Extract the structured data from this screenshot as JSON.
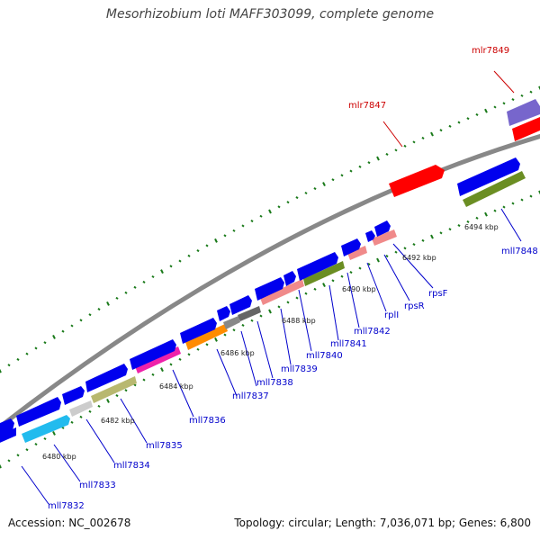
{
  "title": "Mesorhizobium loti MAFF303099, complete genome",
  "footer": {
    "accession": "Accession: NC_002678",
    "summary": "Topology: circular; Length: 7,036,071 bp; Genes: 6,800"
  },
  "colors": {
    "backbone": "#888888",
    "tick": "#1a7a1a",
    "label_forward": "#cc0000",
    "label_reverse": "#0000cc",
    "gene_blue": "#0000ee"
  },
  "scale_labels": [
    "6480 kbp",
    "6482 kbp",
    "6484 kbp",
    "6486 kbp",
    "6488 kbp",
    "6490 kbp",
    "6492 kbp",
    "6494 kbp"
  ],
  "gene_labels": [
    {
      "id": "mlr7849",
      "label": "mlr7849",
      "strand": "forward"
    },
    {
      "id": "mlr7847",
      "label": "mlr7847",
      "strand": "forward"
    },
    {
      "id": "mll7848",
      "label": "mll7848",
      "strand": "reverse"
    },
    {
      "id": "rpsF",
      "label": "rpsF",
      "strand": "reverse"
    },
    {
      "id": "rpsR",
      "label": "rpsR",
      "strand": "reverse"
    },
    {
      "id": "rplI",
      "label": "rplI",
      "strand": "reverse"
    },
    {
      "id": "mll7842",
      "label": "mll7842",
      "strand": "reverse"
    },
    {
      "id": "mll7841",
      "label": "mll7841",
      "strand": "reverse"
    },
    {
      "id": "mll7840",
      "label": "mll7840",
      "strand": "reverse"
    },
    {
      "id": "mll7839",
      "label": "mll7839",
      "strand": "reverse"
    },
    {
      "id": "mll7838",
      "label": "mll7838",
      "strand": "reverse"
    },
    {
      "id": "mll7837",
      "label": "mll7837",
      "strand": "reverse"
    },
    {
      "id": "mll7836",
      "label": "mll7836",
      "strand": "reverse"
    },
    {
      "id": "mll7835",
      "label": "mll7835",
      "strand": "reverse"
    },
    {
      "id": "mll7834",
      "label": "mll7834",
      "strand": "reverse"
    },
    {
      "id": "mll7833",
      "label": "mll7833",
      "strand": "reverse"
    },
    {
      "id": "mll7832",
      "label": "mll7832",
      "strand": "reverse"
    }
  ]
}
